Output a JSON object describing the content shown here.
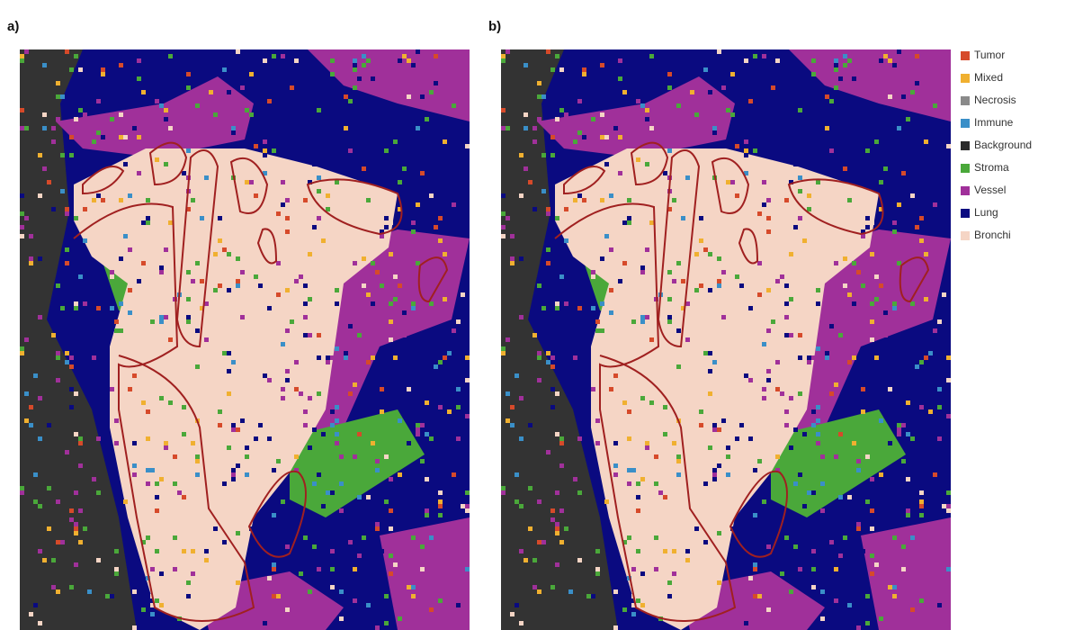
{
  "panels": [
    {
      "label": "a)"
    },
    {
      "label": "b)"
    }
  ],
  "legend": [
    {
      "name": "Tumor",
      "color": "#d64a2a"
    },
    {
      "name": "Mixed",
      "color": "#f0b030"
    },
    {
      "name": "Necrosis",
      "color": "#8a8a8a"
    },
    {
      "name": "Immune",
      "color": "#3a8fc8"
    },
    {
      "name": "Background",
      "color": "#2a2a2a"
    },
    {
      "name": "Stroma",
      "color": "#4aa83a"
    },
    {
      "name": "Vessel",
      "color": "#a0309a"
    },
    {
      "name": "Lung",
      "color": "#0a0a80"
    },
    {
      "name": "Bronchi",
      "color": "#f5d5c5"
    }
  ]
}
